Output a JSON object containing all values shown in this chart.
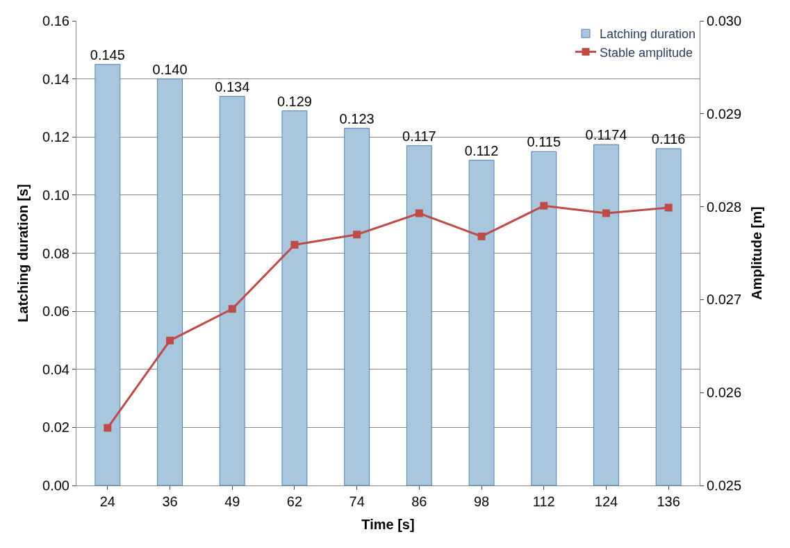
{
  "chart_data": {
    "type": "bar",
    "xlabel": "Time [s]",
    "ylabel": "Latching duration [s]",
    "y2label": "Amplitude [m]",
    "categories": [
      "24",
      "36",
      "49",
      "62",
      "74",
      "86",
      "98",
      "112",
      "124",
      "136"
    ],
    "series": [
      {
        "name": "Latching duration",
        "color": "#a8c6dc",
        "values": [
          0.145,
          0.14,
          0.134,
          0.129,
          0.123,
          0.117,
          0.112,
          0.115,
          0.1174,
          0.116
        ],
        "value_labels": [
          "0.145",
          "0.140",
          "0.134",
          "0.129",
          "0.123",
          "0.117",
          "0.112",
          "0.115",
          "0.1174",
          "0.116"
        ]
      },
      {
        "name": "Stable amplitude",
        "type": "line",
        "axis": "y2",
        "color": "#be4b48",
        "marker": "square",
        "values": [
          0.02562,
          0.02656,
          0.0269,
          0.02759,
          0.0277,
          0.02793,
          0.02768,
          0.02801,
          0.02793,
          0.02799
        ]
      }
    ],
    "ylim": [
      0,
      0.16
    ],
    "yticks": [
      {
        "value": 0,
        "label": "0.00"
      },
      {
        "value": 0.02,
        "label": "0.02"
      },
      {
        "value": 0.04,
        "label": "0.04"
      },
      {
        "value": 0.06,
        "label": "0.06"
      },
      {
        "value": 0.08,
        "label": "0.08"
      },
      {
        "value": 0.1,
        "label": "0.10"
      },
      {
        "value": 0.12,
        "label": "0.12"
      },
      {
        "value": 0.14,
        "label": "0.14"
      },
      {
        "value": 0.16,
        "label": "0.16"
      }
    ],
    "y2lim": [
      0.025,
      0.03
    ],
    "y2ticks": [
      {
        "value": 0.025,
        "label": "0.025"
      },
      {
        "value": 0.026,
        "label": "0.026"
      },
      {
        "value": 0.027,
        "label": "0.027"
      },
      {
        "value": 0.028,
        "label": "0.028"
      },
      {
        "value": 0.029,
        "label": "0.029"
      },
      {
        "value": 0.03,
        "label": "0.030"
      }
    ],
    "grid": "y",
    "legend": "top right"
  }
}
